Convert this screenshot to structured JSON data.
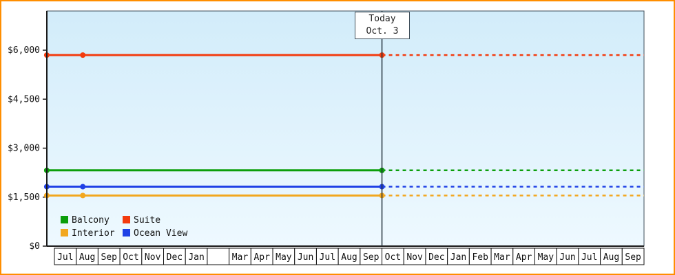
{
  "frame": {
    "border_color": "#ff8e00"
  },
  "chart_data": {
    "type": "line",
    "title": "",
    "xlabel": "",
    "ylabel": "",
    "plot_background": {
      "top": "#d2ecfa",
      "bottom": "#eef9ff"
    },
    "y_axis": {
      "max_value_at_top": 7200,
      "ticks": [
        {
          "value": 0,
          "label": "$0"
        },
        {
          "value": 1500,
          "label": "$1,500"
        },
        {
          "value": 3000,
          "label": "$3,000"
        },
        {
          "value": 4500,
          "label": "$4,500"
        },
        {
          "value": 6000,
          "label": "$6,000"
        }
      ]
    },
    "x_axis": {
      "months": [
        "Jul",
        "Aug",
        "Sep",
        "Oct",
        "Nov",
        "Dec",
        "Jan",
        "",
        "Mar",
        "Apr",
        "May",
        "Jun",
        "Jul",
        "Aug",
        "Sep",
        "Oct",
        "Nov",
        "Dec",
        "Jan",
        "Feb",
        "Mar",
        "Apr",
        "May",
        "Jun",
        "Jul",
        "Aug",
        "Sep"
      ]
    },
    "today": {
      "line1": "Today",
      "line2": "Oct. 3",
      "month_position": 15
    },
    "series": [
      {
        "name": "Suite",
        "color": "#f33b0e",
        "value": 5850,
        "markers_at_months": [
          -0.35,
          1.3,
          15
        ]
      },
      {
        "name": "Balcony",
        "color": "#0b9e0b",
        "value": 2320,
        "markers_at_months": [
          -0.35,
          15
        ]
      },
      {
        "name": "Ocean View",
        "color": "#1f41e6",
        "value": 1820,
        "markers_at_months": [
          -0.35,
          1.3,
          15
        ]
      },
      {
        "name": "Interior",
        "color": "#f2a71f",
        "value": 1550,
        "markers_at_months": [
          -0.35,
          1.3,
          15
        ]
      }
    ],
    "legend": {
      "rows": [
        [
          "Balcony",
          "Suite"
        ],
        [
          "Interior",
          "Ocean View"
        ]
      ]
    }
  }
}
